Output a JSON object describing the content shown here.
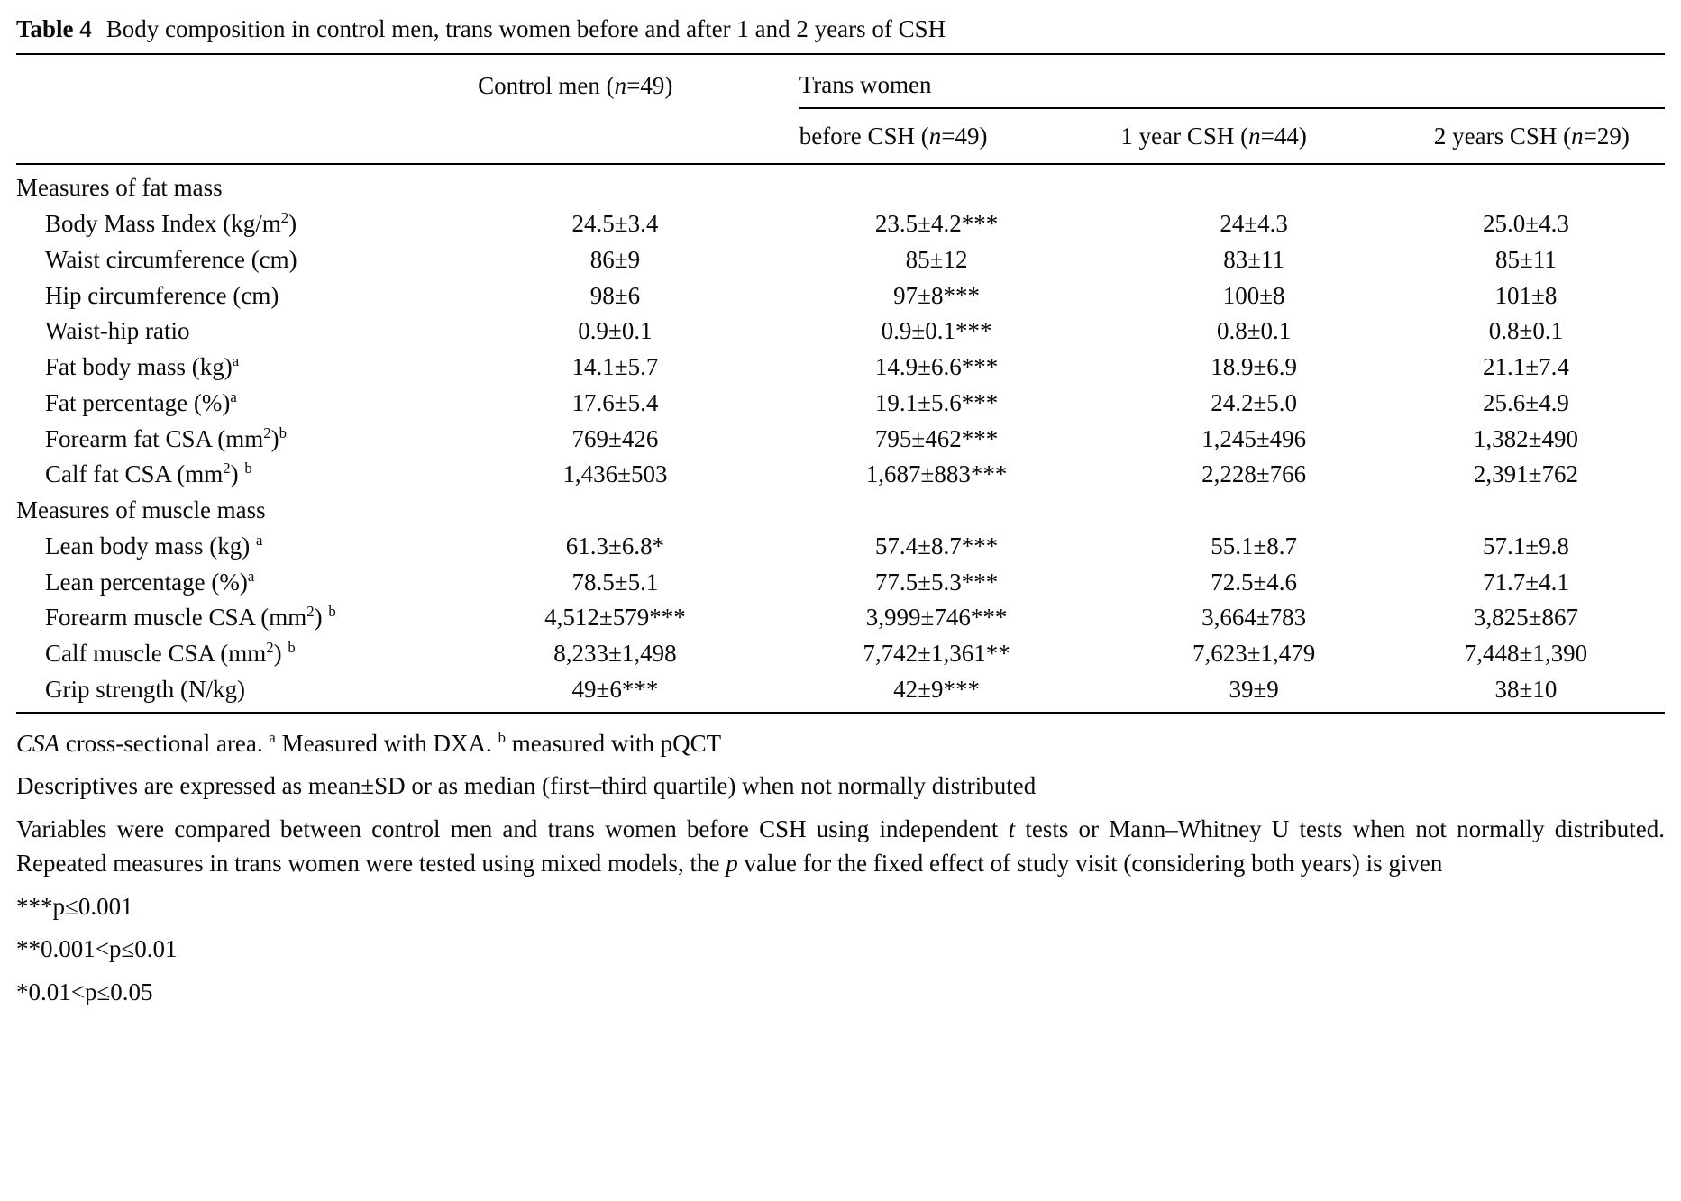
{
  "colors": {
    "text": "#000000",
    "background": "#ffffff",
    "rule": "#000000"
  },
  "title": {
    "label": "Table 4",
    "text": "Body composition in control men, trans women before and after 1 and 2 years of CSH"
  },
  "table": {
    "headers": {
      "control": [
        {
          "t": "Control men ("
        },
        {
          "t": "n",
          "s": "i"
        },
        {
          "t": "=49)"
        }
      ],
      "trans_women": [
        {
          "t": "Trans women"
        }
      ],
      "before_csh": [
        {
          "t": "before CSH ("
        },
        {
          "t": "n",
          "s": "i"
        },
        {
          "t": "=49)"
        }
      ],
      "year1_csh": [
        {
          "t": "1 year CSH ("
        },
        {
          "t": "n",
          "s": "i"
        },
        {
          "t": "=44)"
        }
      ],
      "year2_csh": [
        {
          "t": "2 years CSH ("
        },
        {
          "t": "n",
          "s": "i"
        },
        {
          "t": "=29)"
        }
      ]
    },
    "rows": [
      {
        "type": "section",
        "label": "Measures of fat mass"
      },
      {
        "type": "data",
        "label": [
          {
            "t": "Body Mass Index (kg/m"
          },
          {
            "t": "2",
            "s": "sup"
          },
          {
            "t": ")"
          }
        ],
        "values": [
          "24.5±3.4",
          "23.5±4.2***",
          "24±4.3",
          "25.0±4.3"
        ]
      },
      {
        "type": "data",
        "label": [
          {
            "t": "Waist circumference (cm)"
          }
        ],
        "values": [
          "86±9",
          "85±12",
          "83±11",
          "85±11"
        ]
      },
      {
        "type": "data",
        "label": [
          {
            "t": "Hip circumference (cm)"
          }
        ],
        "values": [
          "98±6",
          "97±8***",
          "100±8",
          "101±8"
        ]
      },
      {
        "type": "data",
        "label": [
          {
            "t": "Waist-hip ratio"
          }
        ],
        "values": [
          "0.9±0.1",
          "0.9±0.1***",
          "0.8±0.1",
          "0.8±0.1"
        ]
      },
      {
        "type": "data",
        "label": [
          {
            "t": "Fat body mass (kg)"
          },
          {
            "t": "a",
            "s": "sup"
          }
        ],
        "values": [
          "14.1±5.7",
          "14.9±6.6***",
          "18.9±6.9",
          "21.1±7.4"
        ]
      },
      {
        "type": "data",
        "label": [
          {
            "t": "Fat percentage (%)"
          },
          {
            "t": "a",
            "s": "sup"
          }
        ],
        "values": [
          "17.6±5.4",
          "19.1±5.6***",
          "24.2±5.0",
          "25.6±4.9"
        ]
      },
      {
        "type": "data",
        "label": [
          {
            "t": "Forearm fat CSA (mm"
          },
          {
            "t": "2",
            "s": "sup"
          },
          {
            "t": ")"
          },
          {
            "t": "b",
            "s": "sup"
          }
        ],
        "values": [
          "769±426",
          "795±462***",
          "1,245±496",
          "1,382±490"
        ]
      },
      {
        "type": "data",
        "label": [
          {
            "t": "Calf fat CSA (mm"
          },
          {
            "t": "2",
            "s": "sup"
          },
          {
            "t": ") "
          },
          {
            "t": "b",
            "s": "sup"
          }
        ],
        "values": [
          "1,436±503",
          "1,687±883***",
          "2,228±766",
          "2,391±762"
        ]
      },
      {
        "type": "section",
        "label": "Measures of muscle mass"
      },
      {
        "type": "data",
        "label": [
          {
            "t": "Lean body mass (kg) "
          },
          {
            "t": "a",
            "s": "sup"
          }
        ],
        "values": [
          "61.3±6.8*",
          "57.4±8.7***",
          "55.1±8.7",
          "57.1±9.8"
        ]
      },
      {
        "type": "data",
        "label": [
          {
            "t": "Lean percentage (%)"
          },
          {
            "t": "a",
            "s": "sup"
          }
        ],
        "values": [
          "78.5±5.1",
          "77.5±5.3***",
          "72.5±4.6",
          "71.7±4.1"
        ]
      },
      {
        "type": "data",
        "label": [
          {
            "t": "Forearm muscle CSA (mm"
          },
          {
            "t": "2",
            "s": "sup"
          },
          {
            "t": ") "
          },
          {
            "t": "b",
            "s": "sup"
          }
        ],
        "values": [
          "4,512±579***",
          "3,999±746***",
          "3,664±783",
          "3,825±867"
        ]
      },
      {
        "type": "data",
        "label": [
          {
            "t": "Calf muscle CSA (mm"
          },
          {
            "t": "2",
            "s": "sup"
          },
          {
            "t": ") "
          },
          {
            "t": "b",
            "s": "sup"
          }
        ],
        "values": [
          "8,233±1,498",
          "7,742±1,361**",
          "7,623±1,479",
          "7,448±1,390"
        ]
      },
      {
        "type": "data",
        "label": [
          {
            "t": "Grip strength (N/kg)"
          }
        ],
        "values": [
          "49±6***",
          "42±9***",
          "39±9",
          "38±10"
        ]
      }
    ]
  },
  "footnotes": [
    [
      {
        "t": "CSA",
        "s": "i"
      },
      {
        "t": " cross-sectional area. "
      },
      {
        "t": "a",
        "s": "sup"
      },
      {
        "t": " Measured with DXA. "
      },
      {
        "t": "b",
        "s": "sup"
      },
      {
        "t": " measured with pQCT"
      }
    ],
    [
      {
        "t": "Descriptives are expressed as mean±SD or as median (first–third quartile) when not normally distributed"
      }
    ],
    [
      {
        "t": "Variables were compared between control men and trans women before CSH using independent "
      },
      {
        "t": "t",
        "s": "i"
      },
      {
        "t": " tests or Mann–Whitney U tests when not normally distributed. Repeated measures in trans women were tested using mixed models, the "
      },
      {
        "t": "p",
        "s": "i"
      },
      {
        "t": " value for the fixed effect of study visit (considering both years) is given"
      }
    ],
    [
      {
        "t": "***p≤0.001"
      }
    ],
    [
      {
        "t": "**0.001<p≤0.01"
      }
    ],
    [
      {
        "t": "*0.01<p≤0.05"
      }
    ]
  ]
}
